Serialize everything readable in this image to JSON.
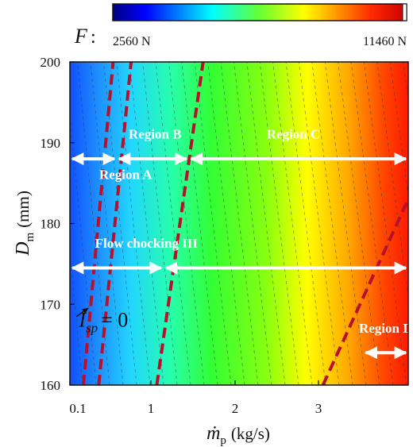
{
  "chart_data": {
    "type": "heatmap",
    "colorbar": {
      "symbol": "F",
      "separator": ":",
      "min_label": "2560 N",
      "max_label": "11460 N",
      "min": 2560,
      "max": 11460,
      "colormap": "jet"
    },
    "xlabel_symbol": "ṁ",
    "xlabel_sub": "p",
    "xlabel_unit": "(kg/s)",
    "ylabel_symbol": "D",
    "ylabel_sub": "m",
    "ylabel_unit": "(mm)",
    "xlim": [
      0.1,
      4.0
    ],
    "ylim": [
      160,
      200
    ],
    "x_ticks": [
      0.1,
      1,
      2,
      3
    ],
    "x_tick_labels": [
      "0.1",
      "1",
      "2",
      "3"
    ],
    "y_ticks": [
      160,
      170,
      180,
      190,
      200
    ],
    "y_tick_labels": [
      "160",
      "170",
      "180",
      "190",
      "200"
    ],
    "boundaries": [
      {
        "x": [
          0.25,
          0.58
        ],
        "y": [
          160,
          200
        ]
      },
      {
        "x": [
          0.42,
          0.78
        ],
        "y": [
          160,
          200
        ]
      },
      {
        "x": [
          1.07,
          1.62
        ],
        "y": [
          160,
          200
        ]
      },
      {
        "x": [
          3.05,
          4.0
        ],
        "y": [
          160,
          183
        ]
      }
    ],
    "region_arrows": [
      {
        "label": "Region A",
        "x_from": 0.1,
        "x_to": 0.62,
        "y": 188,
        "label_x": 0.72,
        "label_y": 185.5
      },
      {
        "label": "Region B",
        "x_from": 0.62,
        "x_to": 1.45,
        "y": 188,
        "label_x": 1.05,
        "label_y": 190.5
      },
      {
        "label": "Region C",
        "x_from": 1.45,
        "x_to": 4.0,
        "y": 188,
        "label_x": 2.7,
        "label_y": 190.5
      },
      {
        "label": "Flow chocking III",
        "x_from": 0.1,
        "x_to": 1.15,
        "y": 174.5,
        "label_x": 0.95,
        "label_y": 177
      },
      {
        "label": "",
        "x_from": 1.15,
        "x_to": 4.0,
        "y": 174.5,
        "label_x": null,
        "label_y": null
      },
      {
        "label": "Region D",
        "x_from": 3.5,
        "x_to": 4.0,
        "y": 164,
        "label_x": 3.75,
        "label_y": 166.5
      }
    ],
    "annotation": {
      "label": "I",
      "sub": "sp",
      "text": "= 0",
      "x": 0.95,
      "y": 168,
      "arrow_to_x": 0.3,
      "arrow_to_y": 169.5
    }
  }
}
